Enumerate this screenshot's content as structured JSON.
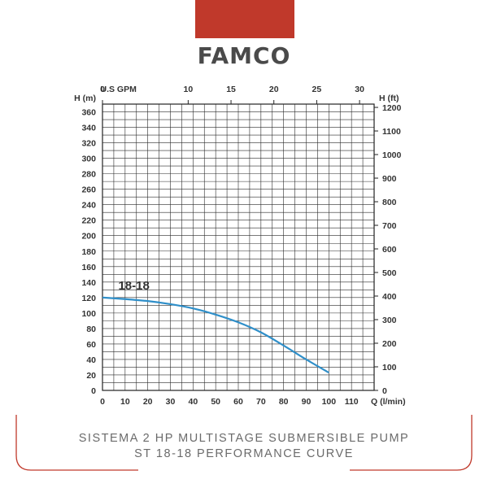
{
  "brand": {
    "logo_text": "FAMCO",
    "accent_color": "#c0392b",
    "curve_color": "#2f8fc9"
  },
  "caption": {
    "line1": "SISTEMA 2 HP MULTISTAGE SUBMERSIBLE PUMP",
    "line2": "ST 18-18 PERFORMANCE CURVE"
  },
  "chart_data": {
    "type": "line",
    "title": "",
    "xlabel": "Q (l/min)",
    "ylabel": "H (m)",
    "xlim": [
      0,
      120
    ],
    "ylim": [
      0,
      370
    ],
    "grid": true,
    "x_ticks": [
      0,
      10,
      20,
      30,
      40,
      50,
      60,
      70,
      80,
      90,
      100,
      110
    ],
    "y_ticks": [
      0,
      20,
      40,
      60,
      80,
      100,
      120,
      140,
      160,
      180,
      200,
      220,
      240,
      260,
      280,
      300,
      320,
      340,
      360
    ],
    "top_axis": {
      "label": "U.S GPM",
      "ticks": [
        0,
        10,
        15,
        20,
        25,
        30
      ],
      "scale_per_lmin": 0.264172
    },
    "right_axis": {
      "label": "H (ft)",
      "ticks": [
        0,
        100,
        200,
        300,
        400,
        500,
        600,
        700,
        800,
        900,
        1000,
        1100,
        1200
      ],
      "scale_per_m": 3.28084
    },
    "series": [
      {
        "name": "18-18",
        "x": [
          0,
          10,
          20,
          30,
          40,
          50,
          60,
          70,
          80,
          90,
          100
        ],
        "y": [
          120,
          118,
          115.5,
          111.5,
          106,
          98,
          88,
          75,
          58,
          40,
          23
        ]
      }
    ]
  }
}
